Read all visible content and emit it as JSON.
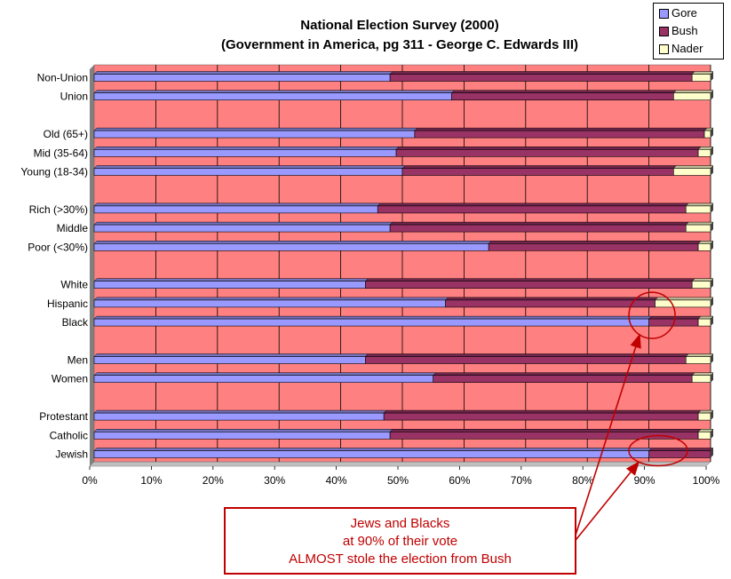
{
  "chart_data": {
    "type": "bar",
    "stacked": true,
    "orientation": "horizontal",
    "title": "National Election Survey (2000)",
    "subtitle": "(Government in America, pg 311 - George C. Edwards III)",
    "categories": [
      "Non-Union",
      "Union",
      "Old (65+)",
      "Mid (35-64)",
      "Young (18-34)",
      "Rich (>30%)",
      "Middle",
      "Poor (<30%)",
      "White",
      "Hispanic",
      "Black",
      "Men",
      "Women",
      "Protestant",
      "Catholic",
      "Jewish"
    ],
    "groups": [
      2,
      3,
      3,
      3,
      2,
      3
    ],
    "series": [
      {
        "name": "Gore",
        "color": "#9999ff",
        "values": [
          48,
          58,
          52,
          49,
          50,
          46,
          48,
          64,
          44,
          57,
          90,
          44,
          55,
          47,
          48,
          90
        ]
      },
      {
        "name": "Bush",
        "color": "#993366",
        "values": [
          49,
          36,
          47,
          49,
          44,
          50,
          48,
          34,
          53,
          34,
          8,
          52,
          42,
          51,
          50,
          10
        ]
      },
      {
        "name": "Nader",
        "color": "#ffffcc",
        "values": [
          3,
          6,
          1,
          2,
          6,
          4,
          4,
          2,
          3,
          9,
          2,
          4,
          3,
          2,
          2,
          0
        ]
      }
    ],
    "x_ticks": [
      "0%",
      "10%",
      "20%",
      "30%",
      "40%",
      "50%",
      "60%",
      "70%",
      "80%",
      "90%",
      "100%"
    ],
    "xlim": [
      0,
      100
    ],
    "plot_background": "#ff8080",
    "grid": true,
    "legend_position": "top-right"
  },
  "annotation": {
    "lines": [
      "Jews and Blacks",
      "at 90% of their vote",
      "ALMOST stole the election from Bush"
    ],
    "color": "#c00000"
  }
}
